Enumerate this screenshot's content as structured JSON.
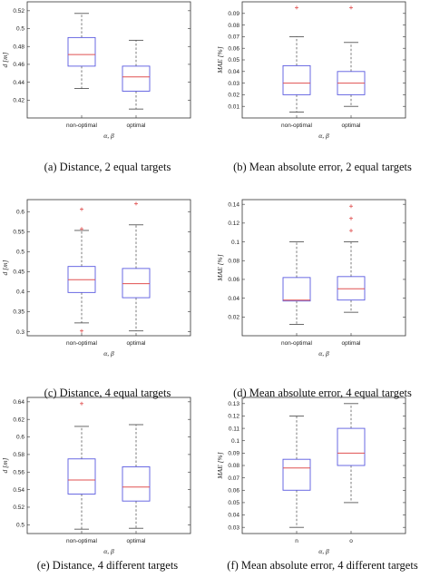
{
  "figure": {
    "captions": [
      "(a)  Distance, 2 equal targets",
      "(b)  Mean absolute error, 2 equal targets",
      "(c)  Distance, 4 equal targets",
      "(d)  Mean absolute error, 4 equal targets",
      "(e)  Distance, 4 different targets",
      "(f)  Mean absolute error, 4 different targets"
    ]
  },
  "colors": {
    "box": "#5a5ae0",
    "median": "#e05050",
    "outlier": "#e05050",
    "whisker": "#444444",
    "axis": "#333333"
  },
  "chart_data": [
    {
      "type": "box",
      "ylabel": "d [m]",
      "xlabel": "α, β",
      "categories": [
        "non-optimal",
        "optimal"
      ],
      "ylim": [
        0.4,
        0.53
      ],
      "yticks": [
        0.42,
        0.44,
        0.46,
        0.48,
        0.5,
        0.52
      ],
      "boxes": [
        {
          "min": 0.433,
          "q1": 0.458,
          "median": 0.471,
          "q3": 0.49,
          "max": 0.517,
          "outliers": []
        },
        {
          "min": 0.41,
          "q1": 0.43,
          "median": 0.446,
          "q3": 0.458,
          "max": 0.487,
          "outliers": []
        }
      ]
    },
    {
      "type": "box",
      "ylabel": "MAE [%]",
      "xlabel": "α, β",
      "categories": [
        "non-optimal",
        "optimal"
      ],
      "ylim": [
        0,
        0.1
      ],
      "yticks": [
        0.01,
        0.02,
        0.03,
        0.04,
        0.05,
        0.06,
        0.07,
        0.08,
        0.09
      ],
      "boxes": [
        {
          "min": 0.005,
          "q1": 0.02,
          "median": 0.03,
          "q3": 0.045,
          "max": 0.07,
          "outliers": [
            0.095
          ]
        },
        {
          "min": 0.01,
          "q1": 0.02,
          "median": 0.03,
          "q3": 0.04,
          "max": 0.065,
          "outliers": [
            0.095
          ]
        }
      ]
    },
    {
      "type": "box",
      "ylabel": "d [m]",
      "xlabel": "α, β",
      "categories": [
        "non-optimal",
        "optimal"
      ],
      "ylim": [
        0.29,
        0.63
      ],
      "yticks": [
        0.3,
        0.35,
        0.4,
        0.45,
        0.5,
        0.55,
        0.6
      ],
      "boxes": [
        {
          "min": 0.322,
          "q1": 0.398,
          "median": 0.43,
          "q3": 0.463,
          "max": 0.553,
          "outliers": [
            0.302,
            0.557,
            0.606
          ]
        },
        {
          "min": 0.302,
          "q1": 0.385,
          "median": 0.42,
          "q3": 0.458,
          "max": 0.567,
          "outliers": [
            0.62
          ]
        }
      ]
    },
    {
      "type": "box",
      "ylabel": "MAE [%]",
      "xlabel": "α, β",
      "categories": [
        "non-optimal",
        "optimal"
      ],
      "ylim": [
        0,
        0.145
      ],
      "yticks": [
        0.02,
        0.04,
        0.06,
        0.08,
        0.1,
        0.12,
        0.14
      ],
      "boxes": [
        {
          "min": 0.012,
          "q1": 0.037,
          "median": 0.038,
          "q3": 0.062,
          "max": 0.1,
          "outliers": []
        },
        {
          "min": 0.025,
          "q1": 0.038,
          "median": 0.05,
          "q3": 0.063,
          "max": 0.1,
          "outliers": [
            0.112,
            0.125,
            0.138
          ]
        }
      ]
    },
    {
      "type": "box",
      "ylabel": "d [m]",
      "xlabel": "α, β",
      "categories": [
        "non-optimal",
        "optimal"
      ],
      "ylim": [
        0.49,
        0.645
      ],
      "yticks": [
        0.5,
        0.52,
        0.54,
        0.56,
        0.58,
        0.6,
        0.62,
        0.64
      ],
      "boxes": [
        {
          "min": 0.495,
          "q1": 0.535,
          "median": 0.551,
          "q3": 0.575,
          "max": 0.612,
          "outliers": [
            0.638
          ]
        },
        {
          "min": 0.496,
          "q1": 0.527,
          "median": 0.543,
          "q3": 0.566,
          "max": 0.614,
          "outliers": []
        }
      ]
    },
    {
      "type": "box",
      "ylabel": "MAE [%]",
      "xlabel": "α, β",
      "categories": [
        "n",
        "o"
      ],
      "ylim": [
        0.025,
        0.135
      ],
      "yticks": [
        0.03,
        0.04,
        0.05,
        0.06,
        0.07,
        0.08,
        0.09,
        0.1,
        0.11,
        0.12,
        0.13
      ],
      "boxes": [
        {
          "min": 0.03,
          "q1": 0.06,
          "median": 0.078,
          "q3": 0.085,
          "max": 0.12,
          "outliers": []
        },
        {
          "min": 0.05,
          "q1": 0.08,
          "median": 0.09,
          "q3": 0.11,
          "max": 0.13,
          "outliers": []
        }
      ]
    }
  ]
}
